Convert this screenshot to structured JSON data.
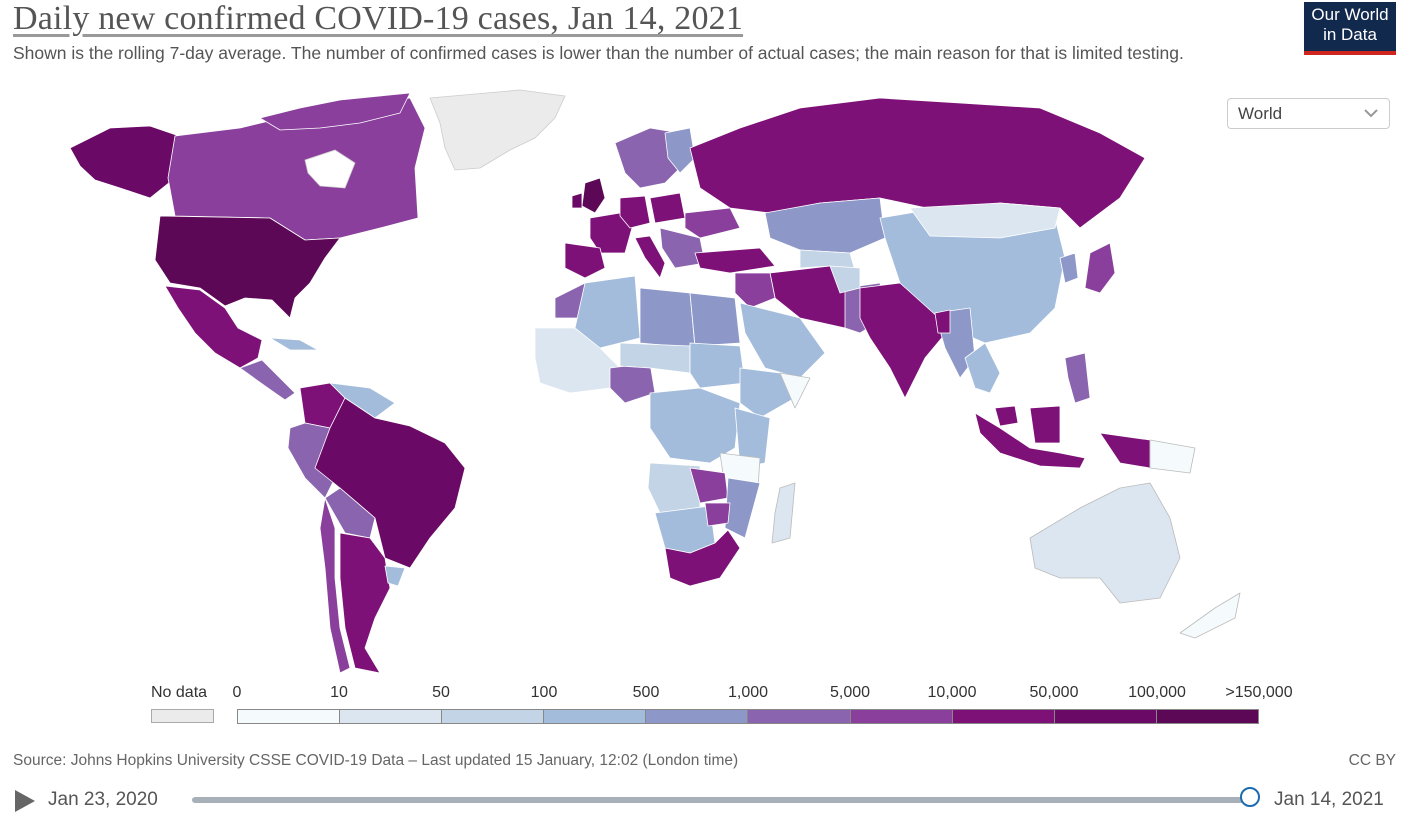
{
  "header": {
    "title": "Daily new confirmed COVID-19 cases, Jan 14, 2021",
    "subtitle": "Shown is the rolling 7-day average. The number of confirmed cases is lower than the number of actual cases; the main reason for that is limited testing."
  },
  "logo": {
    "line1": "Our World",
    "line2": "in Data"
  },
  "region_select": {
    "value": "World"
  },
  "legend": {
    "no_data_label": "No data",
    "ticks": [
      "0",
      "10",
      "50",
      "100",
      "500",
      "1,000",
      "5,000",
      "10,000",
      "50,000",
      "100,000",
      ">150,000"
    ],
    "colors": [
      "#f5fbfc",
      "#dbe6f0",
      "#c3d4e7",
      "#a3bcdb",
      "#8d97c8",
      "#8a64ae",
      "#8a3f9c",
      "#7e1177",
      "#6b0a66",
      "#5d0856"
    ],
    "no_data_color": "#ebebeb"
  },
  "footer": {
    "source": "Source: Johns Hopkins University CSSE COVID-19 Data – Last updated 15 January, 12:02 (London time)",
    "license": "CC BY"
  },
  "timeline": {
    "start": "Jan 23, 2020",
    "end": "Jan 14, 2021",
    "position": 1.0
  }
}
